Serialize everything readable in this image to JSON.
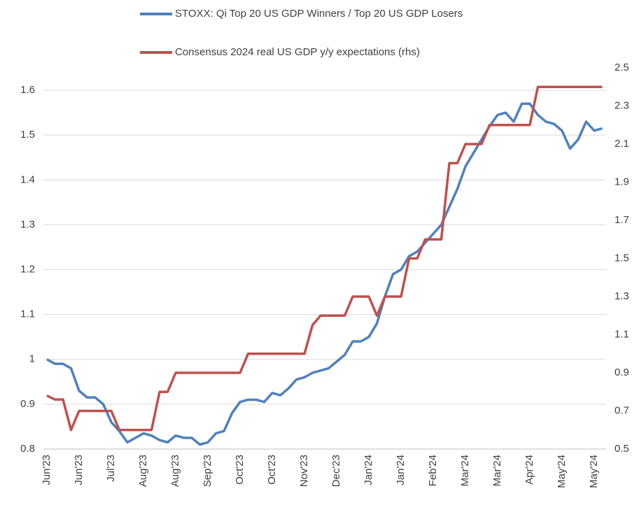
{
  "chart_data": {
    "type": "line",
    "categories": [
      "Jun'23",
      null,
      null,
      null,
      "Jun'23",
      null,
      null,
      null,
      "Jul'23",
      null,
      null,
      null,
      "Aug'23",
      null,
      null,
      null,
      "Aug'23",
      null,
      null,
      null,
      "Sep'23",
      null,
      null,
      null,
      "Oct'23",
      null,
      null,
      null,
      "Oct'23",
      null,
      null,
      null,
      "Nov'23",
      null,
      null,
      null,
      "Dec'23",
      null,
      null,
      null,
      "Jan'24",
      null,
      null,
      null,
      "Jan'24",
      null,
      null,
      null,
      "Feb'24",
      null,
      null,
      null,
      "Mar'24",
      null,
      null,
      null,
      "Mar'24",
      null,
      null,
      null,
      "Apr'24",
      null,
      null,
      null,
      "May'24",
      null,
      null,
      null,
      "May'24",
      null
    ],
    "series": [
      {
        "name": "STOXX: Qi Top 20 US GDP Winners / Top 20 US GDP Losers",
        "color": "#4f81bd",
        "values": [
          1.0,
          0.99,
          0.99,
          0.98,
          0.93,
          0.915,
          0.915,
          0.9,
          0.86,
          0.84,
          0.815,
          0.825,
          0.835,
          0.83,
          0.82,
          0.815,
          0.83,
          0.825,
          0.825,
          0.81,
          0.815,
          0.835,
          0.84,
          0.88,
          0.905,
          0.91,
          0.91,
          0.905,
          0.925,
          0.92,
          0.935,
          0.955,
          0.96,
          0.97,
          0.975,
          0.98,
          0.995,
          1.01,
          1.04,
          1.04,
          1.05,
          1.08,
          1.14,
          1.19,
          1.2,
          1.23,
          1.24,
          1.26,
          1.28,
          1.3,
          1.34,
          1.38,
          1.43,
          1.46,
          1.49,
          1.52,
          1.545,
          1.55,
          1.53,
          1.57,
          1.57,
          1.545,
          1.53,
          1.525,
          1.51,
          1.47,
          1.49,
          1.53,
          1.51,
          1.515
        ]
      },
      {
        "name": "Consensus 2024 real US GDP y/y expectations (rhs)",
        "color": "#c0504d",
        "axis": "y2",
        "values": [
          0.78,
          0.76,
          0.76,
          0.6,
          0.7,
          0.7,
          0.7,
          0.7,
          0.7,
          0.6,
          0.6,
          0.6,
          0.6,
          0.6,
          0.8,
          0.8,
          0.9,
          0.9,
          0.9,
          0.9,
          0.9,
          0.9,
          0.9,
          0.9,
          0.9,
          1.0,
          1.0,
          1.0,
          1.0,
          1.0,
          1.0,
          1.0,
          1.0,
          1.15,
          1.2,
          1.2,
          1.2,
          1.2,
          1.3,
          1.3,
          1.3,
          1.2,
          1.3,
          1.3,
          1.3,
          1.5,
          1.5,
          1.6,
          1.6,
          1.6,
          2.0,
          2.0,
          2.1,
          2.1,
          2.1,
          2.2,
          2.2,
          2.2,
          2.2,
          2.2,
          2.2,
          2.4,
          2.4,
          2.4,
          2.4,
          2.4,
          2.4,
          2.4,
          2.4,
          2.4
        ]
      }
    ],
    "ylim": [
      0.8,
      1.65
    ],
    "yticks": [
      0.8,
      0.9,
      1,
      1.1,
      1.2,
      1.3,
      1.4,
      1.5,
      1.6
    ],
    "y2lim": [
      0.5,
      2.5
    ],
    "y2ticks": [
      0.5,
      0.7,
      0.9,
      1.1,
      1.3,
      1.5,
      1.7,
      1.9,
      2.1,
      2.3,
      2.5
    ],
    "grid": true
  }
}
